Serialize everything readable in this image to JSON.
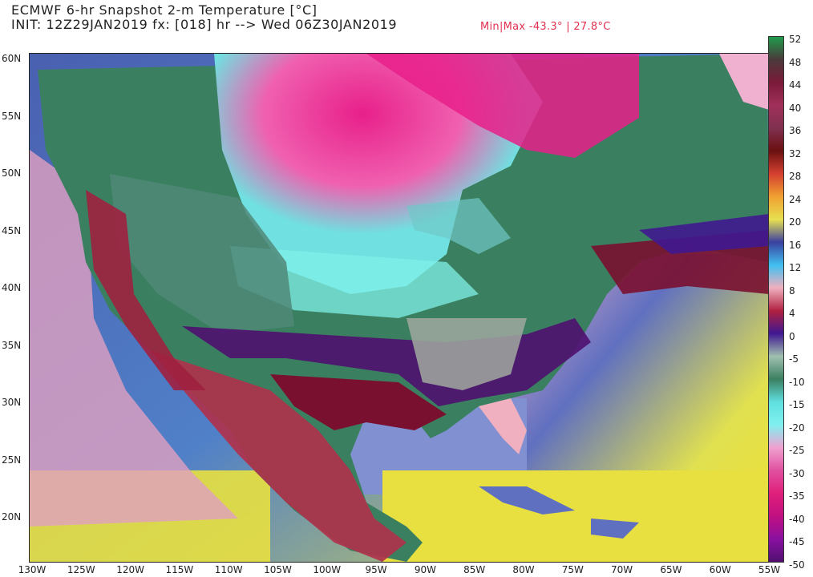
{
  "header": {
    "title_line1": "ECMWF 6-hr Snapshot 2-m Temperature [°C]",
    "title_line2": "INIT: 12Z29JAN2019 fx: [018] hr --> Wed 06Z30JAN2019",
    "minmax": "Min|Max -43.3° | 27.8°C",
    "minmax_color": "#e03050"
  },
  "map": {
    "projection": "lat-lon",
    "lon_range": [
      -130,
      -55
    ],
    "lat_range": [
      16,
      60
    ],
    "lat_labels": [
      "60N",
      "55N",
      "50N",
      "45N",
      "40N",
      "35N",
      "30N",
      "25N",
      "20N"
    ],
    "lon_labels": [
      "130W",
      "125W",
      "120W",
      "115W",
      "110W",
      "105W",
      "100W",
      "95W",
      "90W",
      "85W",
      "80W",
      "75W",
      "70W",
      "65W",
      "60W",
      "55W"
    ],
    "min_temp_c": -43.3,
    "max_temp_c": 27.8
  },
  "colorbar": {
    "labels": [
      "52",
      "48",
      "44",
      "40",
      "36",
      "32",
      "28",
      "24",
      "20",
      "16",
      "12",
      "8",
      "4",
      "0",
      "-5",
      "-10",
      "-15",
      "-20",
      "-25",
      "-30",
      "-35",
      "-40",
      "-45",
      "-50"
    ],
    "colors": [
      "#1f9a4c",
      "#4a3a3a",
      "#7a1a3a",
      "#a0305a",
      "#803050",
      "#6a1010",
      "#d44030",
      "#f0a030",
      "#e8e050",
      "#3a40a0",
      "#40c0f0",
      "#f0b0c0",
      "#b02040",
      "#401890",
      "#a0c0b0",
      "#3a8060",
      "#60e0e0",
      "#80f0f0",
      "#f0a0d0",
      "#e050a0",
      "#e0207a",
      "#c01080",
      "#8a10a0",
      "#501070"
    ]
  }
}
